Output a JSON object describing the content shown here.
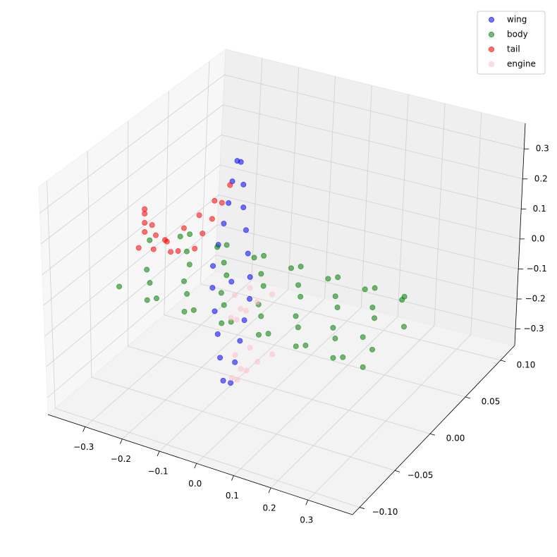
{
  "chart_data": {
    "type": "scatter3d",
    "xlim": [
      -0.4,
      0.42
    ],
    "ylim": [
      -0.11,
      0.12
    ],
    "zlim": [
      -0.355,
      0.385
    ],
    "xticks": [
      {
        "value": -0.3,
        "label": "−0.3"
      },
      {
        "value": -0.2,
        "label": "−0.2"
      },
      {
        "value": -0.1,
        "label": "−0.1"
      },
      {
        "value": 0,
        "label": "0.0"
      },
      0.1,
      0.2,
      0.3
    ],
    "yticks": [
      {
        "value": -0.1,
        "label": "−0.10"
      },
      {
        "value": -0.05,
        "label": "−0.05"
      },
      {
        "value": 0,
        "label": "0.00"
      },
      0.05,
      {
        "value": 0.1,
        "label": "0.10"
      }
    ],
    "zticks": [
      {
        "value": -0.3,
        "label": "−0.3"
      },
      {
        "value": -0.2,
        "label": "−0.2"
      },
      {
        "value": -0.1,
        "label": "−0.1"
      },
      {
        "value": 0,
        "label": "0.0"
      },
      0.1,
      0.2,
      0.3
    ],
    "grid": true,
    "legend": "upper right",
    "series": [
      {
        "name": "wing",
        "color": "blue",
        "x": [
          -0.055,
          -0.035,
          -0.075,
          -0.035,
          -0.095,
          -0.035,
          -0.115,
          -0.035,
          -0.135,
          -0.035,
          -0.146,
          -0.046,
          -0.146,
          -0.066,
          -0.146,
          -0.086,
          -0.146,
          -0.106,
          -0.151,
          -0.121,
          -0.151,
          -0.141,
          -0.09
        ],
        "y": [
          -0.044,
          -0.044,
          -0.038,
          -0.038,
          -0.031,
          -0.031,
          -0.025,
          -0.025,
          -0.018,
          -0.018,
          -0.012,
          -0.012,
          -0.005,
          -0.005,
          0.002,
          0.002,
          0.008,
          0.008,
          0.015,
          0.015,
          0.021,
          0.021,
          -0.015
        ],
        "z": [
          -0.25,
          -0.25,
          -0.195,
          -0.195,
          -0.14,
          -0.14,
          -0.085,
          -0.085,
          -0.03,
          -0.03,
          0.025,
          0.025,
          0.08,
          0.08,
          0.135,
          0.135,
          0.19,
          0.19,
          0.245,
          0.245,
          0.3,
          0.3,
          0
        ]
      },
      {
        "name": "body",
        "color": "green",
        "x": [
          -0.3,
          -0.3,
          -0.3,
          -0.3,
          -0.25,
          -0.25,
          -0.25,
          -0.25,
          -0.2,
          -0.2,
          -0.2,
          -0.2,
          -0.15,
          -0.15,
          -0.15,
          -0.15,
          -0.1,
          -0.1,
          -0.1,
          -0.1,
          -0.05,
          -0.05,
          -0.05,
          -0.05,
          0,
          0,
          0,
          0,
          0.05,
          0.05,
          0.05,
          0.05,
          0.1,
          0.1,
          0.1,
          0.1,
          0.15,
          0.15,
          0.15,
          0.15,
          0.2,
          0.2,
          0.2,
          0.2,
          0.25,
          0.25,
          0.25,
          0.25,
          0.3,
          0.3,
          0.3,
          0.3,
          0.33,
          0.33,
          0.33,
          0.33
        ],
        "y": [
          0.02,
          -0.02,
          -0.06,
          -0.02,
          0.008,
          -0.048,
          -0.048,
          0.008,
          0.02,
          -0.02,
          -0.06,
          -0.02,
          0.008,
          -0.048,
          -0.048,
          0.008,
          0.02,
          -0.02,
          -0.06,
          -0.02,
          0.008,
          -0.048,
          -0.048,
          0.008,
          0.02,
          -0.02,
          -0.06,
          -0.02,
          0.008,
          -0.048,
          -0.048,
          0.008,
          0.02,
          -0.02,
          -0.06,
          -0.02,
          0.008,
          -0.048,
          -0.048,
          0.008,
          0.02,
          -0.02,
          -0.06,
          -0.02,
          0.008,
          -0.048,
          -0.048,
          0.008,
          0.02,
          -0.02,
          -0.06,
          -0.02,
          0.008,
          -0.048,
          -0.048,
          0.008
        ],
        "z": [
          0,
          0.07,
          0,
          -0.07,
          0.05,
          0.05,
          -0.05,
          -0.05,
          0,
          0.07,
          0,
          -0.07,
          0.05,
          0.05,
          -0.05,
          -0.05,
          0,
          0.07,
          0,
          -0.07,
          0.05,
          0.05,
          -0.05,
          -0.05,
          0,
          0.07,
          0,
          -0.07,
          0.05,
          0.05,
          -0.05,
          -0.05,
          0,
          0.07,
          0,
          -0.07,
          0.05,
          0.05,
          -0.05,
          -0.05,
          0,
          0.07,
          0,
          -0.07,
          0.05,
          0.05,
          -0.05,
          -0.05,
          0,
          0.07,
          0,
          -0.07,
          0.05,
          0.05,
          -0.05,
          -0.05
        ]
      },
      {
        "name": "tail",
        "color": "red",
        "x": [
          -0.34,
          -0.3,
          -0.26,
          -0.24,
          -0.33,
          -0.3,
          -0.27,
          -0.33,
          -0.31,
          -0.33,
          -0.33,
          -0.3,
          -0.22,
          -0.28,
          -0.23,
          -0.27,
          -0.235,
          -0.26,
          -0.24,
          -0.25
        ],
        "y": [
          -0.015,
          -0.015,
          -0.012,
          -0.012,
          -0.012,
          -0.012,
          -0.012,
          -0.012,
          -0.012,
          -0.012,
          -0.012,
          0,
          0,
          0.015,
          0.015,
          0.03,
          0.03,
          0.045,
          0.045,
          0.06
        ],
        "z": [
          0.02,
          0.03,
          0.03,
          0.04,
          0.07,
          0.07,
          0.06,
          0.1,
          0.1,
          0.13,
          0.145,
          0.03,
          0.03,
          0.045,
          0.045,
          0.06,
          0.06,
          0.08,
          0.08,
          0.104
        ]
      },
      {
        "name": "engine",
        "color": "pink",
        "x": [
          -0.03,
          -0.03,
          0,
          0,
          0.03,
          0.03,
          0.015,
          -0.015,
          -0.03,
          -0.03,
          0,
          0,
          0.03,
          0.03,
          0.015,
          -0.015
        ],
        "y": [
          -0.02,
          -0.04,
          -0.06,
          -0.04,
          -0.02,
          -0.04,
          -0.06,
          -0.04,
          -0.02,
          -0.04,
          -0.06,
          -0.04,
          -0.02,
          -0.04,
          -0.06,
          -0.04
        ],
        "z": [
          0.013,
          0.033,
          0.013,
          -0.007,
          0.013,
          0.033,
          0.013,
          -0.007,
          -0.185,
          -0.165,
          -0.185,
          -0.205,
          -0.185,
          -0.165,
          -0.185,
          -0.205
        ]
      }
    ]
  }
}
